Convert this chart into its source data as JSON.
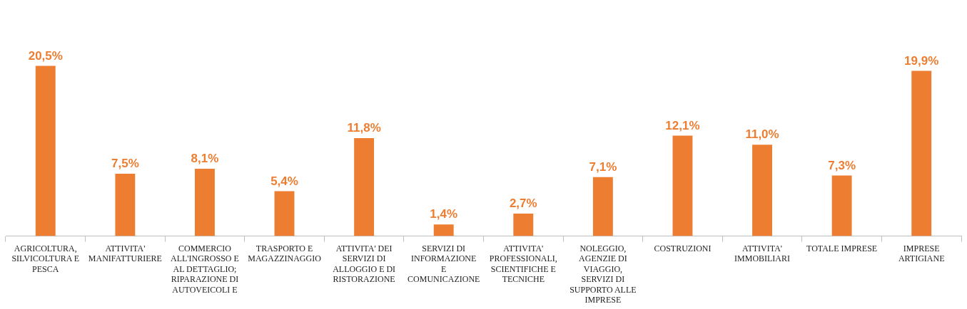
{
  "chart_data": {
    "type": "bar",
    "categories": [
      "AGRICOLTURA, SILVICOLTURA E PESCA",
      "ATTIVITA' MANIFATTURIERE",
      "COMMERCIO ALL'INGROSSO E AL DETTAGLIO; RIPARAZIONE DI AUTOVEICOLI E",
      "TRASPORTO E MAGAZZINAGGIO",
      "ATTIVITA' DEI SERVIZI DI ALLOGGIO E DI RISTORAZIONE",
      "SERVIZI DI INFORMAZIONE E COMUNICAZIONE",
      "ATTIVITA' PROFESSIONALI, SCIENTIFICHE E TECNICHE",
      "NOLEGGIO, AGENZIE DI VIAGGIO, SERVIZI DI SUPPORTO ALLE IMPRESE",
      "COSTRUZIONI",
      "ATTIVITA' IMMOBILIARI",
      "TOTALE IMPRESE",
      "IMPRESE ARTIGIANE"
    ],
    "values": [
      20.5,
      7.5,
      8.1,
      5.4,
      11.8,
      1.4,
      2.7,
      7.1,
      12.1,
      11.0,
      7.3,
      19.9
    ],
    "value_labels": [
      "20,5%",
      "7,5%",
      "8,1%",
      "5,4%",
      "11,8%",
      "1,4%",
      "2,7%",
      "7,1%",
      "12,1%",
      "11,0%",
      "7,3%",
      "19,9%"
    ],
    "color": "#ed7d31",
    "grid": false,
    "legend": false
  }
}
